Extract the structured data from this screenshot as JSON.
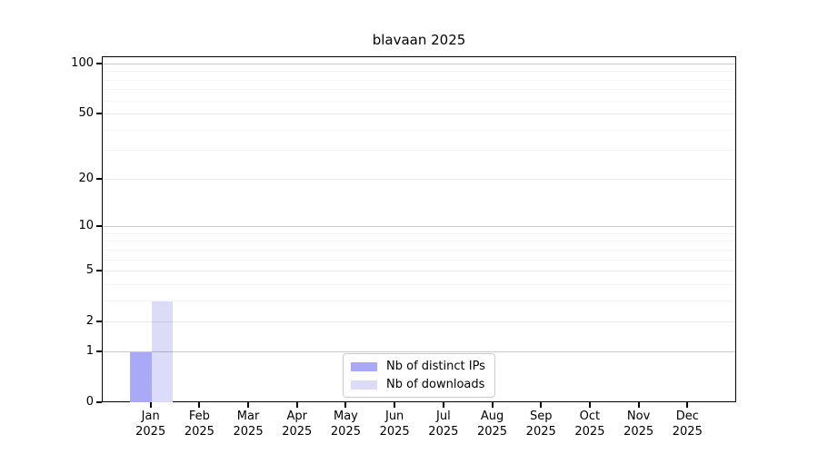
{
  "chart_data": {
    "type": "bar",
    "title": "blavaan 2025",
    "year": "2025",
    "categories": [
      "Jan",
      "Feb",
      "Mar",
      "Apr",
      "May",
      "Jun",
      "Jul",
      "Aug",
      "Sep",
      "Oct",
      "Nov",
      "Dec"
    ],
    "x_tick_labels": [
      {
        "month": "Jan",
        "year": "2025"
      },
      {
        "month": "Feb",
        "year": "2025"
      },
      {
        "month": "Mar",
        "year": "2025"
      },
      {
        "month": "Apr",
        "year": "2025"
      },
      {
        "month": "May",
        "year": "2025"
      },
      {
        "month": "Jun",
        "year": "2025"
      },
      {
        "month": "Jul",
        "year": "2025"
      },
      {
        "month": "Aug",
        "year": "2025"
      },
      {
        "month": "Sep",
        "year": "2025"
      },
      {
        "month": "Oct",
        "year": "2025"
      },
      {
        "month": "Nov",
        "year": "2025"
      },
      {
        "month": "Dec",
        "year": "2025"
      }
    ],
    "series": [
      {
        "name": "Nb of distinct IPs",
        "color": "#a9a9f7",
        "values": [
          1,
          0,
          0,
          0,
          0,
          0,
          0,
          0,
          0,
          0,
          0,
          0
        ]
      },
      {
        "name": "Nb of downloads",
        "color": "#dcdcf8",
        "values": [
          3,
          0,
          0,
          0,
          0,
          0,
          0,
          0,
          0,
          0,
          0,
          0
        ]
      }
    ],
    "y_axis": {
      "scale": "log1p",
      "tick_labels": [
        0,
        1,
        2,
        5,
        10,
        20,
        50,
        100
      ],
      "decade_gridlines": [
        1,
        10,
        100
      ],
      "medium_gridlines": [
        2,
        5,
        20,
        50
      ],
      "minor_gridlines": [
        3,
        4,
        6,
        7,
        8,
        9,
        30,
        40,
        60,
        70,
        80,
        90
      ],
      "ylim": [
        0,
        110
      ]
    },
    "legend": {
      "position": "lower-center"
    },
    "grid": true
  }
}
